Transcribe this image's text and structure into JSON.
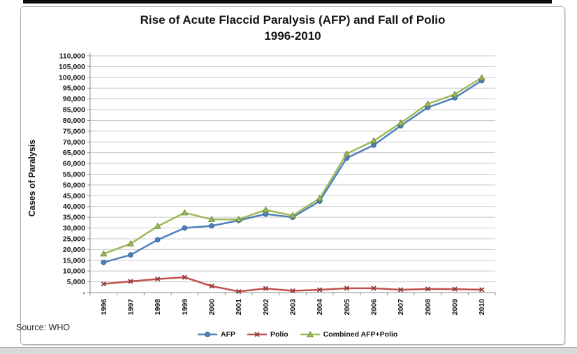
{
  "page": {
    "source_label": "Source: WHO"
  },
  "chart_data": {
    "type": "line",
    "title_line1": "Rise of Acute Flaccid Paralysis (AFP) and Fall of Polio",
    "title_line2": "1996-2010",
    "xlabel": "",
    "ylabel": "Cases of Paralysis",
    "ylim": [
      0,
      110000
    ],
    "ytick_step": 5000,
    "zero_tick_label": "-",
    "grid": true,
    "legend_position": "bottom-center",
    "axis_color": "#898989",
    "gridline_color": "#c8c8c8",
    "categories": [
      "1996",
      "1997",
      "1998",
      "1999",
      "2000",
      "2001",
      "2002",
      "2003",
      "2004",
      "2005",
      "2006",
      "2007",
      "2008",
      "2009",
      "2010"
    ],
    "series": [
      {
        "name": "AFP",
        "color": "#4F81BD",
        "marker": "circle",
        "values": [
          14000,
          17500,
          24500,
          30000,
          31000,
          33500,
          36500,
          35000,
          42500,
          62500,
          68500,
          77500,
          86000,
          90500,
          98500
        ]
      },
      {
        "name": "Polio",
        "color": "#C0504D",
        "marker": "x",
        "values": [
          4000,
          5200,
          6300,
          7100,
          3000,
          500,
          1900,
          800,
          1300,
          2000,
          2000,
          1300,
          1650,
          1600,
          1350
        ]
      },
      {
        "name": "Combined AFP+Polio",
        "color": "#9BBB59",
        "marker": "triangle",
        "values": [
          18000,
          22700,
          30800,
          37100,
          34000,
          34000,
          38400,
          35800,
          43800,
          64500,
          70500,
          78800,
          87650,
          92100,
          99850
        ]
      }
    ]
  }
}
